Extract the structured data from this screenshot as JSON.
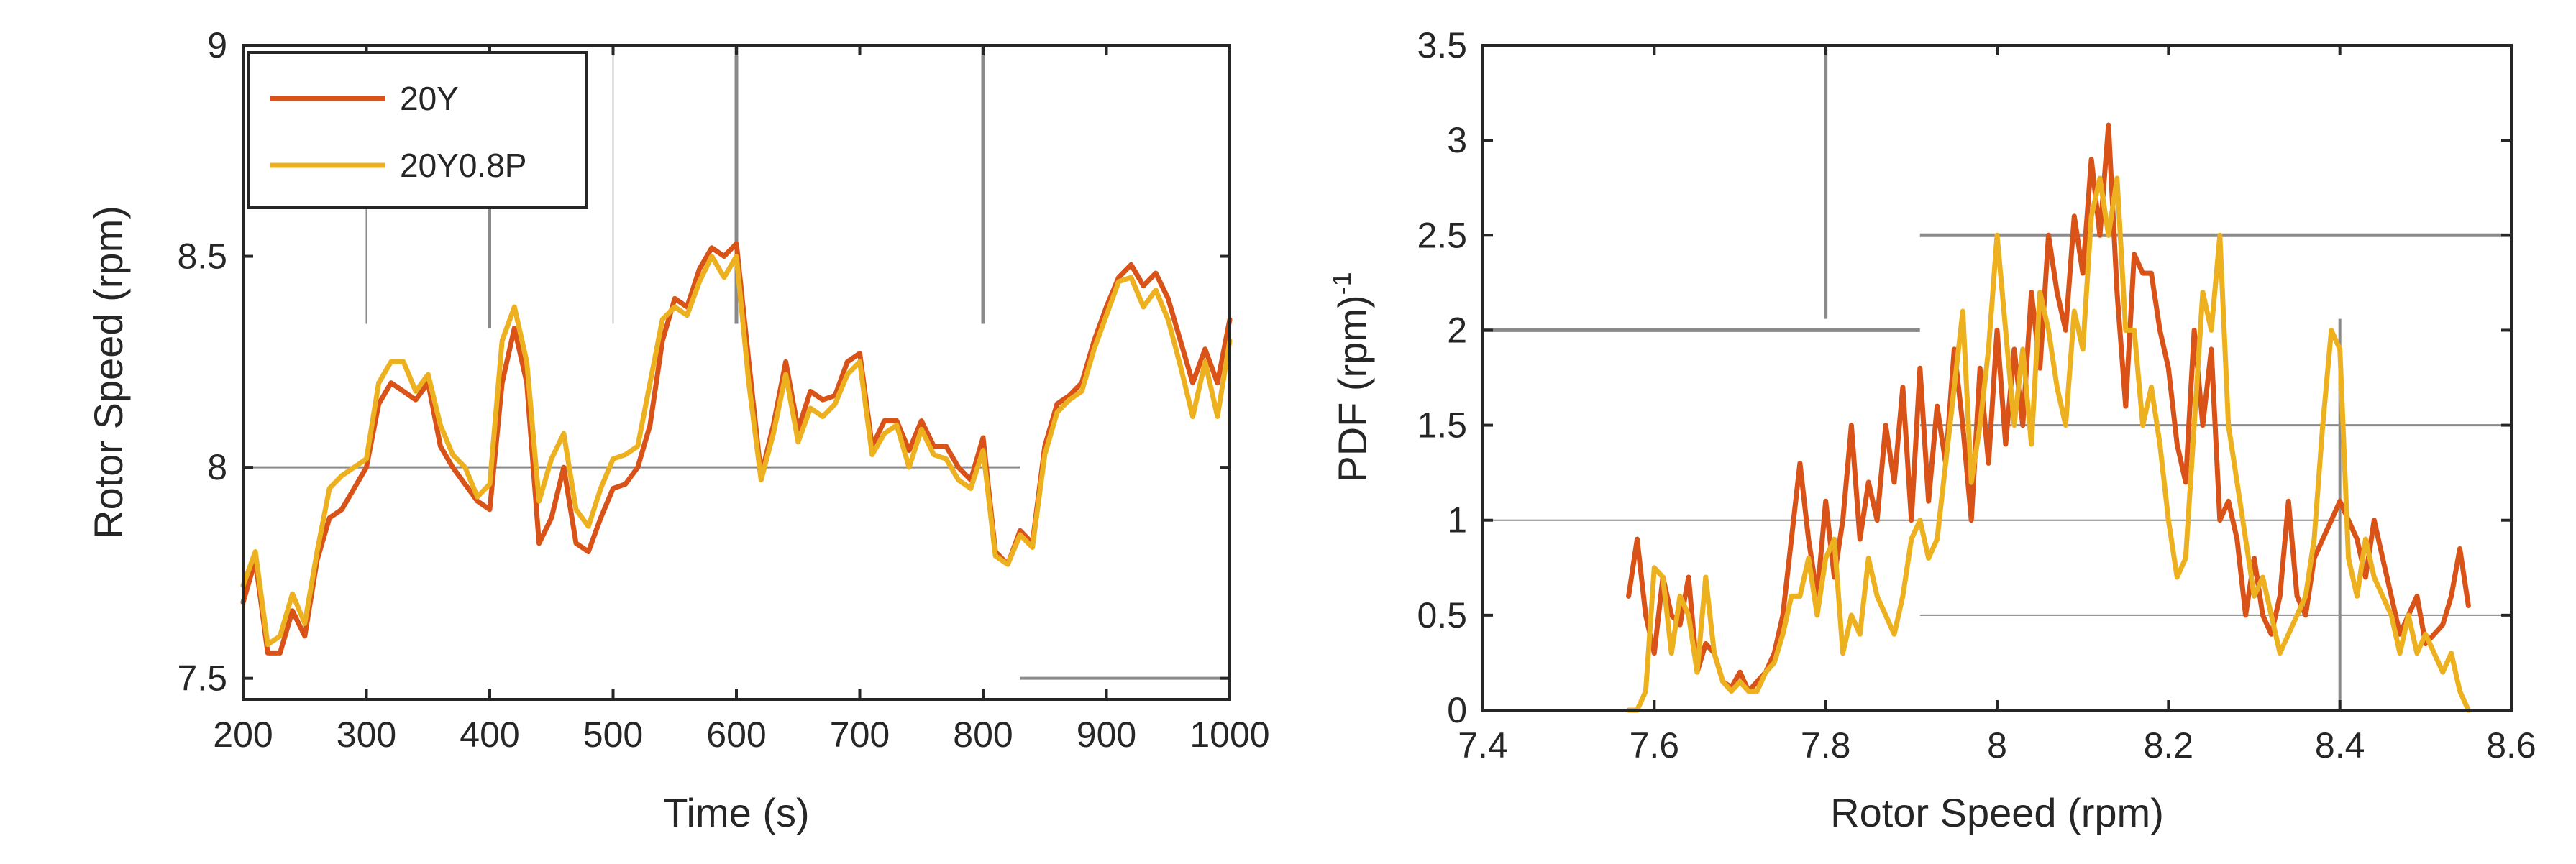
{
  "colors": {
    "series_a": "#D95319",
    "series_b": "#EDB120",
    "axis": "#262626"
  },
  "chart_data": [
    {
      "type": "line",
      "xlabel": "Time (s)",
      "ylabel": "Rotor Speed (rpm)",
      "xlim": [
        200,
        1000
      ],
      "ylim": [
        7.45,
        9.0
      ],
      "xticks": [
        200,
        300,
        400,
        500,
        600,
        700,
        800,
        900,
        1000
      ],
      "xtick_labels": [
        "200",
        "300",
        "400",
        "500",
        "600",
        "700",
        "800",
        "900",
        "1000"
      ],
      "yticks": [
        7.5,
        8.0,
        8.5,
        9.0
      ],
      "ytick_labels": [
        "7.5",
        "8",
        "8.5",
        "9"
      ],
      "legend": {
        "location": "top-left",
        "entries": [
          "20Y",
          "20Y0.8P"
        ]
      },
      "series": [
        {
          "name": "20Y",
          "x": [
            200,
            210,
            220,
            230,
            240,
            250,
            260,
            270,
            280,
            290,
            300,
            310,
            320,
            330,
            340,
            350,
            360,
            370,
            380,
            390,
            400,
            410,
            420,
            430,
            440,
            450,
            460,
            470,
            480,
            490,
            500,
            510,
            520,
            530,
            540,
            550,
            560,
            570,
            580,
            590,
            600,
            610,
            620,
            630,
            640,
            650,
            660,
            670,
            680,
            690,
            700,
            710,
            720,
            730,
            740,
            750,
            760,
            770,
            780,
            790,
            800,
            810,
            820,
            830,
            840,
            850,
            860,
            870,
            880,
            890,
            900,
            910,
            920,
            930,
            940,
            950,
            960,
            970,
            980,
            990,
            1000
          ],
          "y": [
            7.68,
            7.78,
            7.56,
            7.56,
            7.66,
            7.6,
            7.78,
            7.88,
            7.9,
            7.95,
            8.0,
            8.15,
            8.2,
            8.18,
            8.16,
            8.2,
            8.05,
            8.0,
            7.96,
            7.92,
            7.9,
            8.2,
            8.33,
            8.2,
            7.82,
            7.88,
            8.0,
            7.82,
            7.8,
            7.88,
            7.95,
            7.96,
            8.0,
            8.1,
            8.3,
            8.4,
            8.38,
            8.47,
            8.52,
            8.5,
            8.53,
            8.25,
            7.98,
            8.1,
            8.25,
            8.09,
            8.18,
            8.16,
            8.17,
            8.25,
            8.27,
            8.05,
            8.11,
            8.11,
            8.04,
            8.11,
            8.05,
            8.05,
            8.0,
            7.97,
            8.07,
            7.8,
            7.77,
            7.85,
            7.82,
            8.05,
            8.15,
            8.17,
            8.2,
            8.3,
            8.38,
            8.45,
            8.48,
            8.43,
            8.46,
            8.4,
            8.3,
            8.2,
            8.28,
            8.2,
            8.35
          ]
        },
        {
          "name": "20Y0.8P",
          "x": [
            200,
            210,
            220,
            230,
            240,
            250,
            260,
            270,
            280,
            290,
            300,
            310,
            320,
            330,
            340,
            350,
            360,
            370,
            380,
            390,
            400,
            410,
            420,
            430,
            440,
            450,
            460,
            470,
            480,
            490,
            500,
            510,
            520,
            530,
            540,
            550,
            560,
            570,
            580,
            590,
            600,
            610,
            620,
            630,
            640,
            650,
            660,
            670,
            680,
            690,
            700,
            710,
            720,
            730,
            740,
            750,
            760,
            770,
            780,
            790,
            800,
            810,
            820,
            830,
            840,
            850,
            860,
            870,
            880,
            890,
            900,
            910,
            920,
            930,
            940,
            950,
            960,
            970,
            980,
            990,
            1000
          ],
          "y": [
            7.72,
            7.8,
            7.58,
            7.6,
            7.7,
            7.63,
            7.8,
            7.95,
            7.98,
            8.0,
            8.02,
            8.2,
            8.25,
            8.25,
            8.18,
            8.22,
            8.1,
            8.03,
            8.0,
            7.93,
            7.96,
            8.3,
            8.38,
            8.25,
            7.92,
            8.02,
            8.08,
            7.9,
            7.86,
            7.95,
            8.02,
            8.03,
            8.05,
            8.2,
            8.35,
            8.38,
            8.36,
            8.44,
            8.5,
            8.45,
            8.5,
            8.2,
            7.97,
            8.08,
            8.22,
            8.06,
            8.14,
            8.12,
            8.15,
            8.22,
            8.25,
            8.03,
            8.08,
            8.1,
            8.0,
            8.09,
            8.03,
            8.02,
            7.97,
            7.95,
            8.04,
            7.79,
            7.77,
            7.84,
            7.81,
            8.03,
            8.13,
            8.16,
            8.18,
            8.28,
            8.36,
            8.44,
            8.45,
            8.38,
            8.42,
            8.35,
            8.24,
            8.12,
            8.25,
            8.12,
            8.3
          ]
        }
      ]
    },
    {
      "type": "line",
      "xlabel": "Rotor Speed (rpm)",
      "ylabel": "PDF (rpm)",
      "ylabel_superscript": "-1",
      "xlim": [
        7.4,
        8.6
      ],
      "ylim": [
        0,
        3.5
      ],
      "xticks": [
        7.4,
        7.6,
        7.8,
        8.0,
        8.2,
        8.4,
        8.6
      ],
      "xtick_labels": [
        "7.4",
        "7.6",
        "7.8",
        "8",
        "8.2",
        "8.4",
        "8.6"
      ],
      "yticks": [
        0,
        0.5,
        1,
        1.5,
        2,
        2.5,
        3,
        3.5
      ],
      "ytick_labels": [
        "0",
        "0.5",
        "1",
        "1.5",
        "2",
        "2.5",
        "3",
        "3.5"
      ],
      "series": [
        {
          "name": "20Y",
          "x": [
            7.57,
            7.58,
            7.59,
            7.6,
            7.61,
            7.62,
            7.63,
            7.64,
            7.65,
            7.66,
            7.67,
            7.68,
            7.69,
            7.7,
            7.71,
            7.72,
            7.73,
            7.74,
            7.75,
            7.76,
            7.77,
            7.78,
            7.79,
            7.8,
            7.81,
            7.82,
            7.83,
            7.84,
            7.85,
            7.86,
            7.87,
            7.88,
            7.89,
            7.9,
            7.91,
            7.92,
            7.93,
            7.94,
            7.95,
            7.96,
            7.97,
            7.98,
            7.99,
            8.0,
            8.01,
            8.02,
            8.03,
            8.04,
            8.05,
            8.06,
            8.07,
            8.08,
            8.09,
            8.1,
            8.11,
            8.12,
            8.13,
            8.14,
            8.15,
            8.16,
            8.17,
            8.18,
            8.19,
            8.2,
            8.21,
            8.22,
            8.23,
            8.24,
            8.25,
            8.26,
            8.27,
            8.28,
            8.29,
            8.3,
            8.31,
            8.32,
            8.33,
            8.34,
            8.35,
            8.36,
            8.37,
            8.38,
            8.39,
            8.4,
            8.41,
            8.42,
            8.43,
            8.44,
            8.45,
            8.46,
            8.47,
            8.48,
            8.49,
            8.5,
            8.51,
            8.52,
            8.53,
            8.54,
            8.55
          ],
          "y": [
            0.6,
            0.9,
            0.5,
            0.3,
            0.7,
            0.5,
            0.45,
            0.7,
            0.2,
            0.35,
            0.3,
            0.15,
            0.12,
            0.2,
            0.1,
            0.15,
            0.2,
            0.3,
            0.5,
            0.9,
            1.3,
            0.9,
            0.6,
            1.1,
            0.7,
            1.0,
            1.5,
            0.9,
            1.2,
            1.0,
            1.5,
            1.2,
            1.7,
            1.0,
            1.8,
            1.1,
            1.6,
            1.3,
            1.9,
            1.5,
            1.0,
            1.8,
            1.3,
            2.0,
            1.4,
            1.9,
            1.5,
            2.2,
            1.8,
            2.5,
            2.2,
            2.0,
            2.6,
            2.3,
            2.9,
            2.5,
            3.08,
            2.2,
            1.6,
            2.4,
            2.3,
            2.3,
            2.0,
            1.8,
            1.4,
            1.2,
            2.0,
            1.5,
            1.9,
            1.0,
            1.1,
            0.9,
            0.5,
            0.8,
            0.5,
            0.4,
            0.6,
            1.1,
            0.6,
            0.5,
            0.8,
            0.9,
            1.0,
            1.1,
            1.0,
            0.9,
            0.7,
            1.0,
            0.8,
            0.6,
            0.4,
            0.5,
            0.6,
            0.35,
            0.4,
            0.45,
            0.6,
            0.85,
            0.55
          ]
        },
        {
          "name": "20Y0.8P",
          "x": [
            7.57,
            7.58,
            7.59,
            7.6,
            7.61,
            7.62,
            7.63,
            7.64,
            7.65,
            7.66,
            7.67,
            7.68,
            7.69,
            7.7,
            7.71,
            7.72,
            7.73,
            7.74,
            7.75,
            7.76,
            7.77,
            7.78,
            7.79,
            7.8,
            7.81,
            7.82,
            7.83,
            7.84,
            7.85,
            7.86,
            7.87,
            7.88,
            7.89,
            7.9,
            7.91,
            7.92,
            7.93,
            7.94,
            7.95,
            7.96,
            7.97,
            7.98,
            7.99,
            8.0,
            8.01,
            8.02,
            8.03,
            8.04,
            8.05,
            8.06,
            8.07,
            8.08,
            8.09,
            8.1,
            8.11,
            8.12,
            8.13,
            8.14,
            8.15,
            8.16,
            8.17,
            8.18,
            8.19,
            8.2,
            8.21,
            8.22,
            8.23,
            8.24,
            8.25,
            8.26,
            8.27,
            8.28,
            8.29,
            8.3,
            8.31,
            8.32,
            8.33,
            8.34,
            8.35,
            8.36,
            8.37,
            8.38,
            8.39,
            8.4,
            8.41,
            8.42,
            8.43,
            8.44,
            8.45,
            8.46,
            8.47,
            8.48,
            8.49,
            8.5,
            8.51,
            8.52,
            8.53,
            8.54,
            8.55
          ],
          "y": [
            0,
            0,
            0.1,
            0.75,
            0.7,
            0.3,
            0.6,
            0.5,
            0.2,
            0.7,
            0.3,
            0.15,
            0.1,
            0.15,
            0.1,
            0.1,
            0.2,
            0.25,
            0.4,
            0.6,
            0.6,
            0.8,
            0.5,
            0.8,
            0.9,
            0.3,
            0.5,
            0.4,
            0.8,
            0.6,
            0.5,
            0.4,
            0.6,
            0.9,
            1.0,
            0.8,
            0.9,
            1.3,
            1.7,
            2.1,
            1.2,
            1.5,
            1.9,
            2.5,
            2.0,
            1.5,
            1.9,
            1.4,
            2.2,
            2.0,
            1.7,
            1.5,
            2.1,
            1.9,
            2.6,
            2.8,
            2.5,
            2.8,
            2.0,
            2.0,
            1.5,
            1.7,
            1.4,
            1.0,
            0.7,
            0.8,
            1.5,
            2.2,
            2.0,
            2.5,
            1.5,
            1.2,
            0.9,
            0.6,
            0.7,
            0.5,
            0.3,
            0.4,
            0.5,
            0.6,
            0.9,
            1.5,
            2.0,
            1.9,
            0.8,
            0.6,
            0.9,
            0.7,
            0.6,
            0.5,
            0.3,
            0.5,
            0.3,
            0.4,
            0.3,
            0.2,
            0.3,
            0.1,
            0
          ]
        }
      ]
    }
  ]
}
